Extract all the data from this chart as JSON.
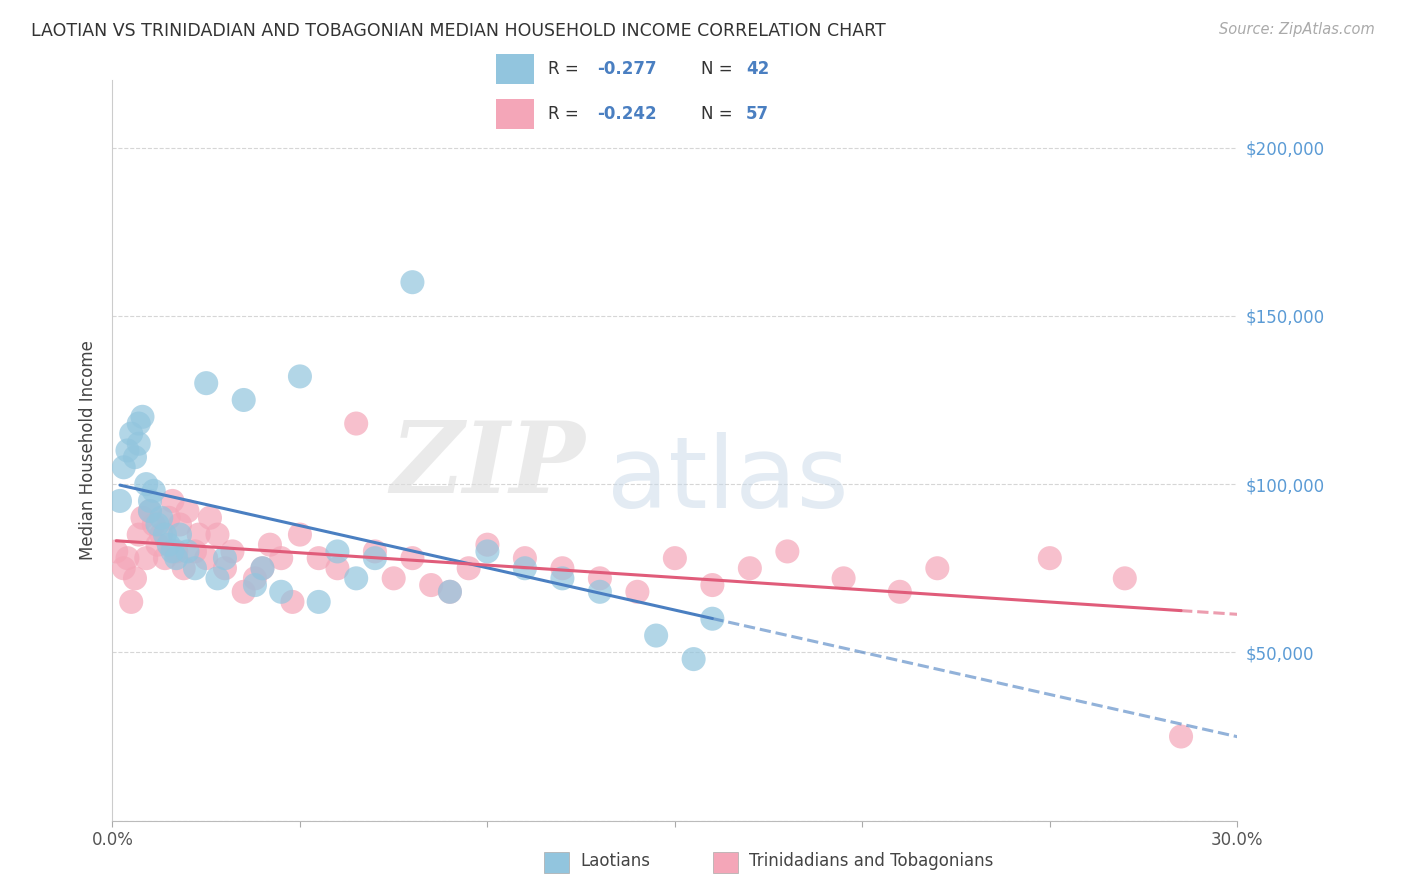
{
  "title": "LAOTIAN VS TRINIDADIAN AND TOBAGONIAN MEDIAN HOUSEHOLD INCOME CORRELATION CHART",
  "source": "Source: ZipAtlas.com",
  "ylabel": "Median Household Income",
  "xlim": [
    0.0,
    0.3
  ],
  "ylim": [
    0,
    220000
  ],
  "yticks": [
    0,
    50000,
    100000,
    150000,
    200000
  ],
  "xticks": [
    0.0,
    0.05,
    0.1,
    0.15,
    0.2,
    0.25,
    0.3
  ],
  "laotian_color": "#92C5DE",
  "trinidadian_color": "#F4A6B8",
  "laotian_line_color": "#4A7FC1",
  "trinidadian_line_color": "#E05C7A",
  "laotian_R": -0.277,
  "laotian_N": 42,
  "trinidadian_R": -0.242,
  "trinidadian_N": 57,
  "legend_label_1": "Laotians",
  "legend_label_2": "Trinidadians and Tobagonians",
  "watermark_zip": "ZIP",
  "watermark_atlas": "atlas",
  "background_color": "#FFFFFF",
  "laotian_x": [
    0.002,
    0.003,
    0.004,
    0.005,
    0.006,
    0.007,
    0.007,
    0.008,
    0.009,
    0.01,
    0.01,
    0.011,
    0.012,
    0.013,
    0.014,
    0.015,
    0.016,
    0.017,
    0.018,
    0.02,
    0.022,
    0.025,
    0.028,
    0.03,
    0.035,
    0.038,
    0.04,
    0.045,
    0.05,
    0.055,
    0.06,
    0.065,
    0.07,
    0.08,
    0.09,
    0.1,
    0.11,
    0.12,
    0.13,
    0.145,
    0.155,
    0.16
  ],
  "laotian_y": [
    95000,
    105000,
    110000,
    115000,
    108000,
    112000,
    118000,
    120000,
    100000,
    95000,
    92000,
    98000,
    88000,
    90000,
    85000,
    82000,
    80000,
    78000,
    85000,
    80000,
    75000,
    130000,
    72000,
    78000,
    125000,
    70000,
    75000,
    68000,
    132000,
    65000,
    80000,
    72000,
    78000,
    160000,
    68000,
    80000,
    75000,
    72000,
    68000,
    55000,
    48000,
    60000
  ],
  "trinidadian_x": [
    0.001,
    0.003,
    0.004,
    0.005,
    0.006,
    0.007,
    0.008,
    0.009,
    0.01,
    0.011,
    0.012,
    0.013,
    0.014,
    0.015,
    0.016,
    0.017,
    0.018,
    0.019,
    0.02,
    0.022,
    0.023,
    0.025,
    0.026,
    0.028,
    0.03,
    0.032,
    0.035,
    0.038,
    0.04,
    0.042,
    0.045,
    0.048,
    0.05,
    0.055,
    0.06,
    0.065,
    0.07,
    0.075,
    0.08,
    0.085,
    0.09,
    0.095,
    0.1,
    0.11,
    0.12,
    0.13,
    0.14,
    0.15,
    0.16,
    0.17,
    0.18,
    0.195,
    0.21,
    0.22,
    0.25,
    0.27,
    0.285
  ],
  "trinidadian_y": [
    80000,
    75000,
    78000,
    65000,
    72000,
    85000,
    90000,
    78000,
    92000,
    88000,
    82000,
    85000,
    78000,
    90000,
    95000,
    80000,
    88000,
    75000,
    92000,
    80000,
    85000,
    78000,
    90000,
    85000,
    75000,
    80000,
    68000,
    72000,
    75000,
    82000,
    78000,
    65000,
    85000,
    78000,
    75000,
    118000,
    80000,
    72000,
    78000,
    70000,
    68000,
    75000,
    82000,
    78000,
    75000,
    72000,
    68000,
    78000,
    70000,
    75000,
    80000,
    72000,
    68000,
    75000,
    78000,
    72000,
    25000
  ]
}
